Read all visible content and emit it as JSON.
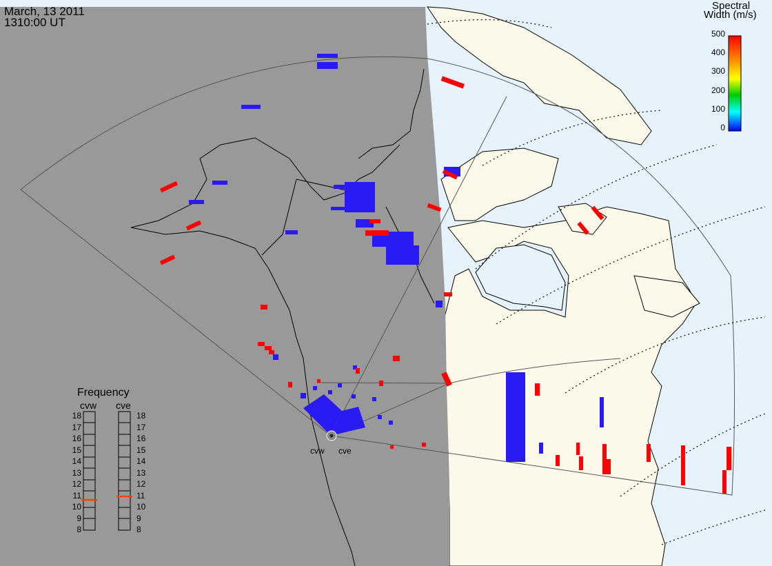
{
  "header": {
    "date": "March, 13 2011",
    "time": "1310:00 UT"
  },
  "colorbar": {
    "title_line1": "Spectral",
    "title_line2": "Width (m/s)",
    "ticks": [
      "500",
      "400",
      "300",
      "200",
      "100",
      "0"
    ],
    "colors": [
      "#ff0000",
      "#ff8800",
      "#ffff00",
      "#00cc00",
      "#00ffff",
      "#0000ff"
    ]
  },
  "frequency": {
    "title": "Frequency",
    "radars": [
      {
        "name": "cvw",
        "freq_mhz": 10.6
      },
      {
        "name": "cve",
        "freq_mhz": 10.9
      }
    ],
    "ticks": [
      "18",
      "17",
      "16",
      "15",
      "14",
      "13",
      "12",
      "11",
      "10",
      "9",
      "8"
    ]
  },
  "radar_labels": [
    "cvw",
    "cve"
  ],
  "map_colors": {
    "night": "#999999",
    "land": "#fdf9ea",
    "ocean": "#e6f3fc",
    "high_width": "#ff0000",
    "low_width": "#2a1bf5"
  }
}
